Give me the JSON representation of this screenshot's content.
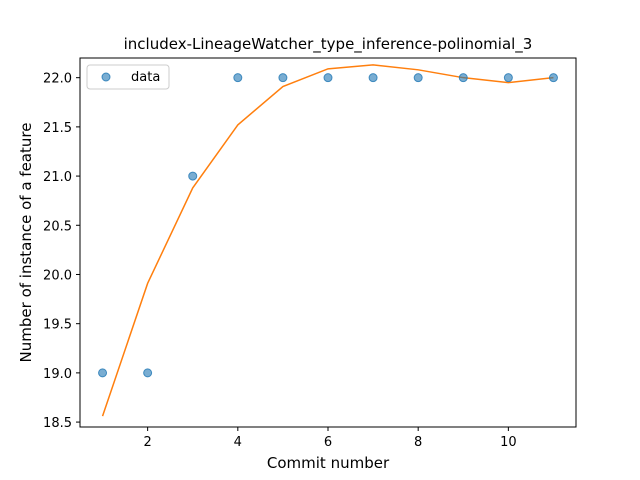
{
  "chart_data": {
    "type": "scatter",
    "title": "includex-LineageWatcher_type_inference-polinomial_3",
    "xlabel": "Commit number",
    "ylabel": "Number of instance of a feature",
    "xlim": [
      0.5,
      11.5
    ],
    "ylim": [
      18.45,
      22.2
    ],
    "x_ticks": [
      2,
      4,
      6,
      8,
      10
    ],
    "y_ticks": [
      18.5,
      19.0,
      19.5,
      20.0,
      20.5,
      21.0,
      21.5,
      22.0
    ],
    "grid": false,
    "legend_position": "upper-left",
    "series": [
      {
        "name": "data",
        "kind": "scatter",
        "color": "#1f77b4",
        "x": [
          1,
          2,
          3,
          4,
          5,
          6,
          7,
          8,
          9,
          10,
          11
        ],
        "y": [
          19,
          19,
          21,
          22,
          22,
          22,
          22,
          22,
          22,
          22,
          22
        ]
      },
      {
        "kind": "line",
        "color": "#ff7f0e",
        "x": [
          1,
          2,
          3,
          4,
          5,
          6,
          7,
          8,
          9,
          10,
          11
        ],
        "y": [
          18.56,
          19.91,
          20.88,
          21.52,
          21.91,
          22.09,
          22.13,
          22.08,
          22.0,
          21.95,
          22.0
        ]
      }
    ]
  }
}
